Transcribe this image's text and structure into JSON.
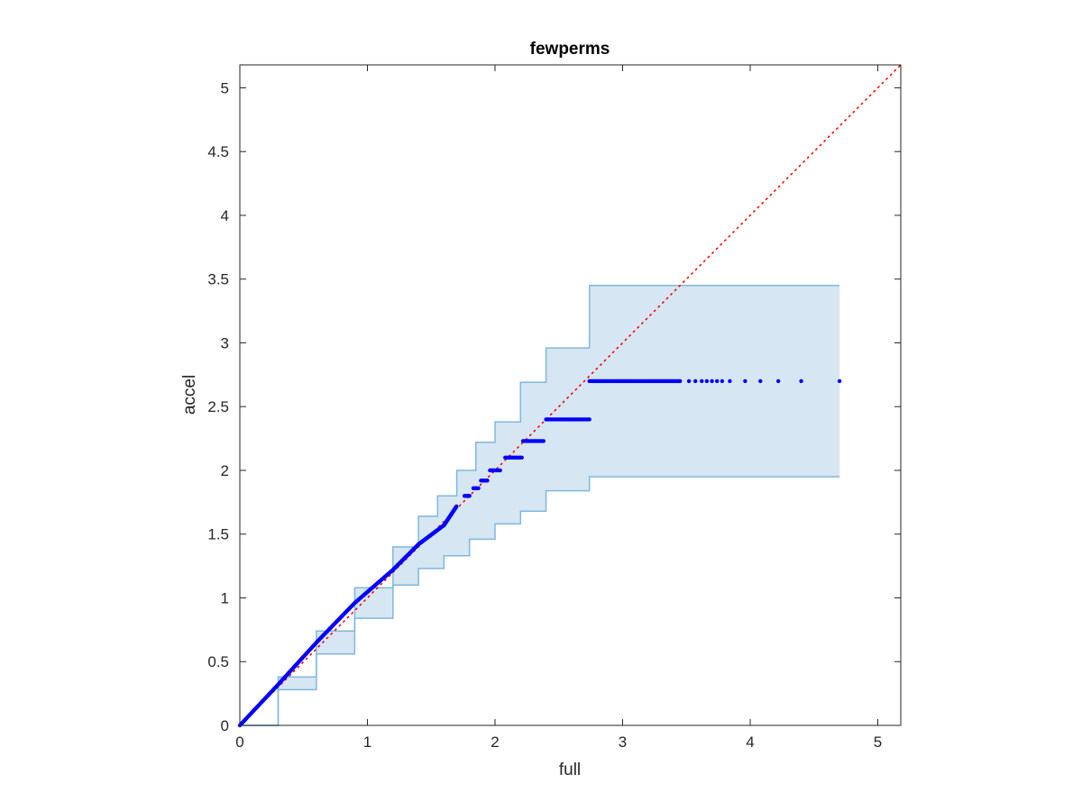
{
  "chart_data": {
    "type": "scatter",
    "title": "fewperms",
    "xlabel": "full",
    "ylabel": "accel",
    "xlim": [
      0,
      5.18
    ],
    "ylim": [
      0,
      5.18
    ],
    "xticks": [
      0,
      1,
      2,
      3,
      4,
      5
    ],
    "xtick_labels": [
      "0",
      "1",
      "2",
      "3",
      "4",
      "5"
    ],
    "yticks": [
      0,
      0.5,
      1,
      1.5,
      2,
      2.5,
      3,
      3.5,
      4,
      4.5,
      5
    ],
    "ytick_labels": [
      "0",
      "0.5",
      "1",
      "1.5",
      "2",
      "2.5",
      "3",
      "3.5",
      "4",
      "4.5",
      "5"
    ],
    "grid": false,
    "colors": {
      "points": "#0000ff",
      "reference_line": "#ff0000",
      "band_fill": "#d6e6f3",
      "band_edge": "#7fb8de",
      "axes": "#262626"
    },
    "reference_line": {
      "style": "dotted",
      "from": [
        0,
        0
      ],
      "to": [
        5.18,
        5.18
      ]
    },
    "band": {
      "upper": [
        [
          0,
          0
        ],
        [
          0.3,
          0.38
        ],
        [
          0.6,
          0.74
        ],
        [
          0.9,
          1.08
        ],
        [
          1.2,
          1.4
        ],
        [
          1.4,
          1.64
        ],
        [
          1.55,
          1.8
        ],
        [
          1.7,
          2.0
        ],
        [
          1.85,
          2.22
        ],
        [
          2.0,
          2.38
        ],
        [
          2.2,
          2.69
        ],
        [
          2.4,
          2.96
        ],
        [
          2.74,
          3.45
        ],
        [
          4.7,
          3.45
        ]
      ],
      "lower": [
        [
          0,
          0
        ],
        [
          0.3,
          0.28
        ],
        [
          0.6,
          0.56
        ],
        [
          0.9,
          0.84
        ],
        [
          1.2,
          1.1
        ],
        [
          1.4,
          1.23
        ],
        [
          1.6,
          1.33
        ],
        [
          1.8,
          1.46
        ],
        [
          2.0,
          1.58
        ],
        [
          2.2,
          1.68
        ],
        [
          2.4,
          1.84
        ],
        [
          2.74,
          1.95
        ],
        [
          4.7,
          1.95
        ]
      ]
    },
    "series": [
      {
        "curve": [
          [
            0,
            0
          ],
          [
            0.3,
            0.32
          ],
          [
            0.6,
            0.65
          ],
          [
            0.9,
            0.96
          ],
          [
            1.2,
            1.22
          ],
          [
            1.4,
            1.42
          ],
          [
            1.6,
            1.57
          ],
          [
            1.7,
            1.72
          ]
        ]
      },
      {
        "steps": [
          {
            "y": 1.8,
            "x_from": 1.76,
            "x_to": 1.8
          },
          {
            "y": 1.86,
            "x_from": 1.83,
            "x_to": 1.87
          },
          {
            "y": 1.92,
            "x_from": 1.89,
            "x_to": 1.94
          },
          {
            "y": 2.0,
            "x_from": 1.96,
            "x_to": 2.04
          },
          {
            "y": 2.1,
            "x_from": 2.08,
            "x_to": 2.21
          },
          {
            "y": 2.23,
            "x_from": 2.22,
            "x_to": 2.38
          },
          {
            "y": 2.4,
            "x_from": 2.4,
            "x_to": 2.74
          },
          {
            "y": 2.7,
            "x_from": 2.74,
            "x_to": 3.45
          }
        ],
        "points": [
          [
            3.52,
            2.7
          ],
          [
            3.57,
            2.7
          ],
          [
            3.62,
            2.7
          ],
          [
            3.66,
            2.7
          ],
          [
            3.7,
            2.7
          ],
          [
            3.74,
            2.7
          ],
          [
            3.78,
            2.7
          ],
          [
            3.84,
            2.7
          ],
          [
            3.96,
            2.7
          ],
          [
            4.08,
            2.7
          ],
          [
            4.22,
            2.7
          ],
          [
            4.4,
            2.7
          ],
          [
            4.7,
            2.7
          ]
        ]
      }
    ]
  }
}
